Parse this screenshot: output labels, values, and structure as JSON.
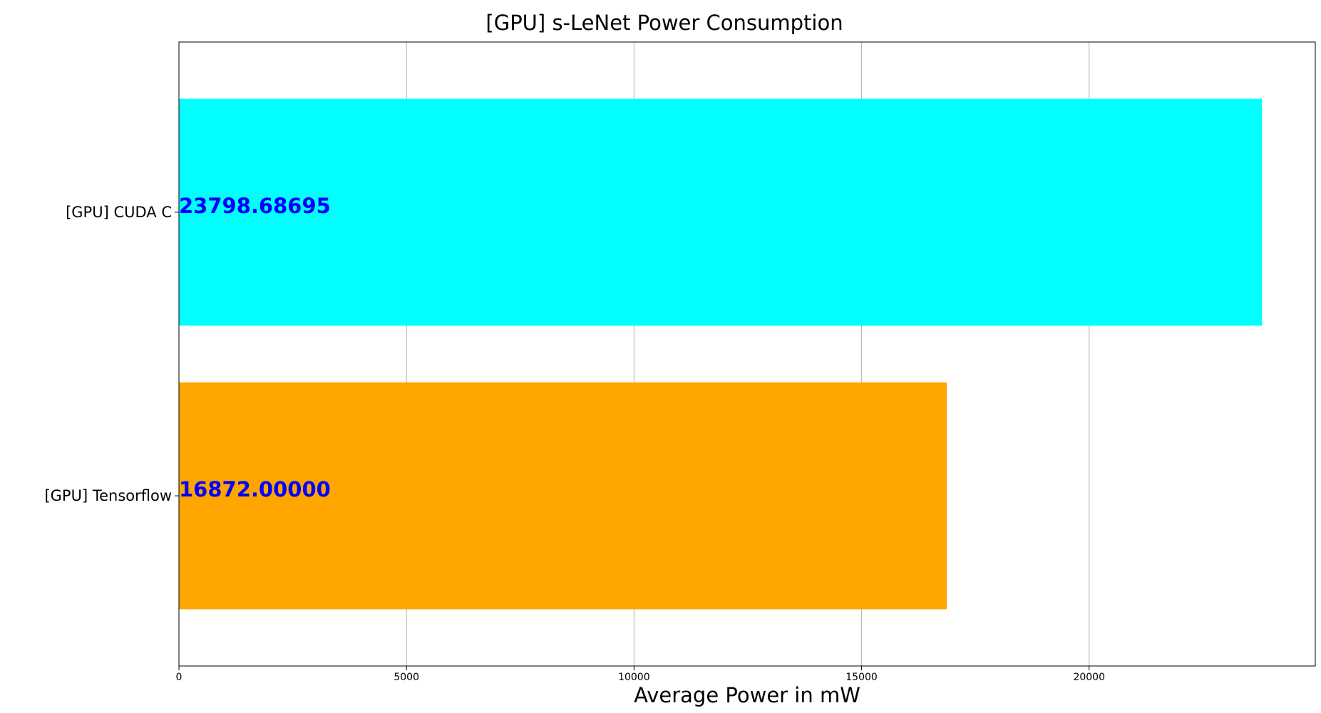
{
  "chart_data": {
    "type": "bar",
    "orientation": "horizontal",
    "title": "[GPU] s-LeNet Power Consumption",
    "xlabel": "Average Power in mW",
    "ylabel": "",
    "categories": [
      "[GPU] CUDA C",
      "[GPU] Tensorflow"
    ],
    "values": [
      23798.68695,
      16872.0
    ],
    "value_labels": [
      "23798.68695",
      "16872.00000"
    ],
    "bar_colors": [
      "#00ffff",
      "#ffa500"
    ],
    "value_label_color": "#0000ff",
    "xlim": [
      0,
      24970
    ],
    "xticks": [
      0,
      5000,
      10000,
      15000,
      20000
    ],
    "xtick_labels": [
      "0",
      "5000",
      "10000",
      "15000",
      "20000"
    ],
    "grid": "vertical"
  }
}
